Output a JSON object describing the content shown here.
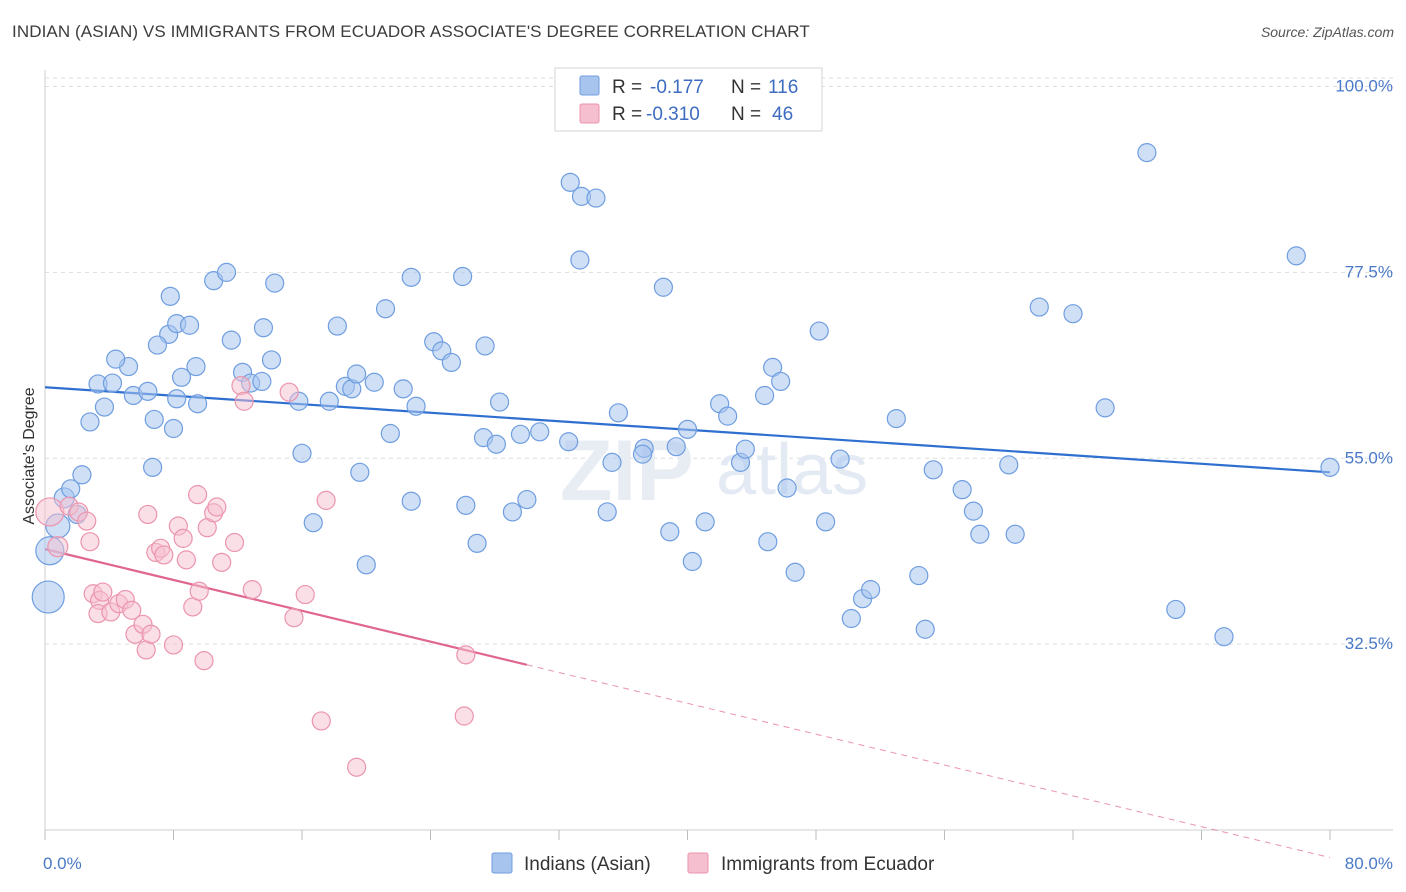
{
  "header": {
    "title": "INDIAN (ASIAN) VS IMMIGRANTS FROM ECUADOR ASSOCIATE'S DEGREE CORRELATION CHART",
    "source": "Source: ZipAtlas.com"
  },
  "watermark": {
    "part1": "ZIP",
    "part2": "atlas"
  },
  "legend": {
    "r_label": "R =",
    "n_label": "N =",
    "items": [
      {
        "r": "-0.177",
        "n": "116",
        "color": "#a7c4ee",
        "stroke": "#6f9ee0"
      },
      {
        "r": "-0.310",
        "n": "46",
        "color": "#f6bfd0",
        "stroke": "#eb94ad"
      }
    ]
  },
  "chart_data": {
    "type": "scatter",
    "title": "INDIAN (ASIAN) VS IMMIGRANTS FROM ECUADOR ASSOCIATE'S DEGREE CORRELATION CHART",
    "xlabel": "",
    "ylabel": "Associate's Degree",
    "xlim": [
      0,
      80
    ],
    "ylim": [
      10,
      102
    ],
    "x_tick_labels": [
      "0.0%",
      "80.0%"
    ],
    "y_ticks": [
      32.5,
      55.0,
      77.5,
      100.0
    ],
    "y_tick_labels": [
      "32.5%",
      "55.0%",
      "77.5%",
      "100.0%"
    ],
    "grid": true,
    "legend_position": "top-center",
    "series": [
      {
        "name": "Indians (Asian)",
        "color": "#a7c4ee",
        "stroke": "#6f9ee0",
        "trend": {
          "x0": 0,
          "y0": 63.6,
          "x1": 80,
          "y1": 53.3,
          "color": "#2f6fd0"
        },
        "points": [
          [
            0.2,
            38.2,
            16
          ],
          [
            0.3,
            43.8,
            14
          ],
          [
            0.8,
            46.8,
            12
          ],
          [
            1.2,
            50.2,
            10
          ],
          [
            1.6,
            51.3,
            9
          ],
          [
            2.0,
            48.2,
            9
          ],
          [
            2.3,
            53.0,
            9
          ],
          [
            2.8,
            59.4,
            9
          ],
          [
            3.3,
            64.0,
            9
          ],
          [
            3.7,
            61.2,
            9
          ],
          [
            4.2,
            64.1,
            9
          ],
          [
            5.2,
            66.1,
            9
          ],
          [
            5.5,
            62.6,
            9
          ],
          [
            6.4,
            63.1,
            9
          ],
          [
            6.8,
            59.7,
            9
          ],
          [
            7.7,
            70.0,
            9
          ],
          [
            7.8,
            74.6,
            9
          ],
          [
            4.4,
            67.0,
            9
          ],
          [
            8.2,
            71.3,
            9
          ],
          [
            7.0,
            68.7,
            9
          ],
          [
            6.7,
            53.9,
            9
          ],
          [
            8.2,
            62.2,
            9
          ],
          [
            8.0,
            58.6,
            9
          ],
          [
            8.5,
            64.8,
            9
          ],
          [
            9.4,
            66.1,
            9
          ],
          [
            9.5,
            61.6,
            9
          ],
          [
            9.0,
            71.1,
            9
          ],
          [
            10.5,
            76.5,
            9
          ],
          [
            11.3,
            77.5,
            9
          ],
          [
            11.6,
            69.3,
            9
          ],
          [
            12.3,
            65.4,
            9
          ],
          [
            12.8,
            64.1,
            9
          ],
          [
            13.6,
            70.8,
            9
          ],
          [
            13.5,
            64.3,
            9
          ],
          [
            14.3,
            76.2,
            9
          ],
          [
            14.1,
            66.9,
            9
          ],
          [
            15.8,
            61.9,
            9
          ],
          [
            16.0,
            55.6,
            9
          ],
          [
            16.7,
            47.2,
            9
          ],
          [
            17.7,
            61.9,
            9
          ],
          [
            18.2,
            71.0,
            9
          ],
          [
            18.7,
            63.7,
            9
          ],
          [
            19.1,
            63.4,
            9
          ],
          [
            19.4,
            65.2,
            9
          ],
          [
            19.6,
            53.3,
            9
          ],
          [
            20.5,
            64.2,
            9
          ],
          [
            20.0,
            42.1,
            9
          ],
          [
            21.2,
            73.1,
            9
          ],
          [
            21.5,
            58.0,
            9
          ],
          [
            22.3,
            63.4,
            9
          ],
          [
            22.8,
            76.9,
            9
          ],
          [
            22.8,
            49.8,
            9
          ],
          [
            23.1,
            61.3,
            9
          ],
          [
            24.2,
            69.1,
            9
          ],
          [
            24.7,
            68.0,
            9
          ],
          [
            25.3,
            66.6,
            9
          ],
          [
            26.0,
            77.0,
            9
          ],
          [
            26.2,
            49.3,
            9
          ],
          [
            26.9,
            44.7,
            9
          ],
          [
            27.4,
            68.6,
            9
          ],
          [
            27.3,
            57.5,
            9
          ],
          [
            28.1,
            56.7,
            9
          ],
          [
            28.3,
            61.8,
            9
          ],
          [
            29.1,
            48.5,
            9
          ],
          [
            29.6,
            57.9,
            9
          ],
          [
            30.0,
            50.0,
            9
          ],
          [
            30.8,
            58.2,
            9
          ],
          [
            32.6,
            57.0,
            9
          ],
          [
            32.7,
            88.4,
            9
          ],
          [
            33.4,
            86.7,
            9
          ],
          [
            34.3,
            86.5,
            9
          ],
          [
            33.3,
            79.0,
            9
          ],
          [
            35.0,
            48.5,
            9
          ],
          [
            35.3,
            54.5,
            9
          ],
          [
            35.7,
            60.5,
            9
          ],
          [
            37.3,
            56.2,
            9
          ],
          [
            37.2,
            55.5,
            9
          ],
          [
            38.5,
            75.7,
            9
          ],
          [
            38.9,
            46.1,
            9
          ],
          [
            39.3,
            56.4,
            9
          ],
          [
            40.0,
            58.5,
            9
          ],
          [
            40.3,
            42.5,
            9
          ],
          [
            41.1,
            47.3,
            9
          ],
          [
            42.0,
            61.6,
            9
          ],
          [
            42.5,
            60.1,
            9
          ],
          [
            43.3,
            54.5,
            9
          ],
          [
            43.6,
            56.1,
            9
          ],
          [
            45.3,
            66.0,
            9
          ],
          [
            45.8,
            64.3,
            9
          ],
          [
            46.7,
            41.2,
            9
          ],
          [
            44.8,
            62.6,
            9
          ],
          [
            45.0,
            44.9,
            9
          ],
          [
            46.2,
            51.4,
            9
          ],
          [
            48.2,
            70.4,
            9
          ],
          [
            48.6,
            47.3,
            9
          ],
          [
            49.5,
            54.9,
            9
          ],
          [
            50.2,
            35.6,
            9
          ],
          [
            50.9,
            38.0,
            9
          ],
          [
            51.4,
            39.1,
            9
          ],
          [
            54.4,
            40.8,
            9
          ],
          [
            53.0,
            59.8,
            9
          ],
          [
            54.8,
            34.3,
            9
          ],
          [
            55.3,
            53.6,
            9
          ],
          [
            57.1,
            51.2,
            9
          ],
          [
            57.8,
            48.6,
            9
          ],
          [
            58.2,
            45.8,
            9
          ],
          [
            60.4,
            45.8,
            9
          ],
          [
            60.0,
            54.2,
            9
          ],
          [
            61.9,
            73.3,
            9
          ],
          [
            64.0,
            72.5,
            9
          ],
          [
            66.0,
            61.1,
            9
          ],
          [
            68.6,
            92.0,
            9
          ],
          [
            70.4,
            36.7,
            9
          ],
          [
            73.4,
            33.4,
            9
          ],
          [
            77.9,
            79.5,
            9
          ],
          [
            80.0,
            53.9,
            9
          ]
        ]
      },
      {
        "name": "Immigrants from Ecuador",
        "color": "#f6bfd0",
        "stroke": "#eb94ad",
        "trend": {
          "x0": 0,
          "y0": 44.0,
          "x1": 30,
          "y1": 30.0,
          "color": "#e06690",
          "dash_to_x": 80
        },
        "points": [
          [
            0.3,
            48.5,
            14
          ],
          [
            0.8,
            44.3,
            10
          ],
          [
            1.5,
            49.2,
            9
          ],
          [
            2.1,
            48.5,
            9
          ],
          [
            2.6,
            47.4,
            9
          ],
          [
            2.8,
            44.9,
            9
          ],
          [
            3.0,
            38.6,
            9
          ],
          [
            3.4,
            37.8,
            9
          ],
          [
            3.3,
            36.2,
            9
          ],
          [
            3.6,
            38.8,
            9
          ],
          [
            4.1,
            36.4,
            9
          ],
          [
            4.6,
            37.4,
            9
          ],
          [
            5.0,
            37.9,
            9
          ],
          [
            5.4,
            36.6,
            9
          ],
          [
            5.6,
            33.7,
            9
          ],
          [
            6.1,
            34.9,
            9
          ],
          [
            6.3,
            31.8,
            9
          ],
          [
            6.4,
            48.2,
            9
          ],
          [
            6.6,
            33.7,
            9
          ],
          [
            6.9,
            43.6,
            9
          ],
          [
            7.2,
            44.1,
            9
          ],
          [
            7.4,
            43.3,
            9
          ],
          [
            8.0,
            32.4,
            9
          ],
          [
            8.3,
            46.8,
            9
          ],
          [
            8.6,
            45.3,
            9
          ],
          [
            8.8,
            42.7,
            9
          ],
          [
            9.2,
            37.0,
            9
          ],
          [
            9.5,
            50.6,
            9
          ],
          [
            9.9,
            30.5,
            9
          ],
          [
            10.1,
            46.6,
            9
          ],
          [
            10.5,
            48.4,
            9
          ],
          [
            10.7,
            49.1,
            9
          ],
          [
            11.0,
            42.4,
            9
          ],
          [
            11.8,
            44.8,
            9
          ],
          [
            12.2,
            63.8,
            9
          ],
          [
            12.9,
            39.1,
            9
          ],
          [
            15.2,
            63.0,
            9
          ],
          [
            15.5,
            35.7,
            9
          ],
          [
            16.2,
            38.5,
            9
          ],
          [
            17.2,
            23.2,
            9
          ],
          [
            17.5,
            49.9,
            9
          ],
          [
            19.4,
            17.6,
            9
          ],
          [
            26.1,
            23.8,
            9
          ],
          [
            26.2,
            31.2,
            9
          ],
          [
            12.4,
            61.9,
            9
          ],
          [
            9.6,
            38.9,
            9
          ]
        ]
      }
    ]
  },
  "bottom_legend": [
    "Indians (Asian)",
    "Immigrants from Ecuador"
  ]
}
